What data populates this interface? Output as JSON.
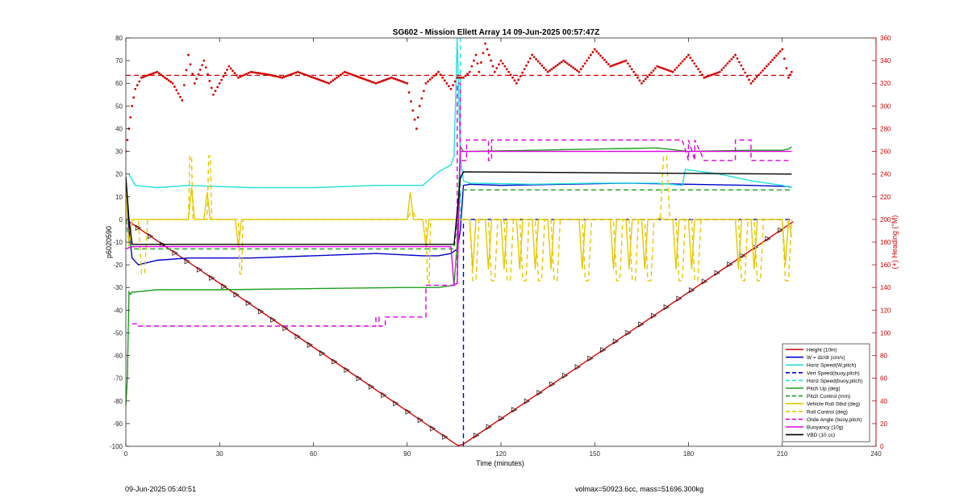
{
  "footer": {
    "timestamp": "09-Jun-2025 05:40:51",
    "volmax_mass": "volmax=50923.6cc, mass=51696.300kg"
  },
  "chart_data": {
    "type": "line",
    "title": "SG602 - Mission Ellett Array 14 09-Jun-2025 00:57:47Z",
    "xlabel": "Time (minutes)",
    "ylabel": "p6020590",
    "y2label": "(+) Heading (°M)",
    "xlim": [
      0,
      240
    ],
    "ylim": [
      -100,
      80
    ],
    "y2lim": [
      0,
      360
    ],
    "xticks": [
      0,
      30,
      60,
      90,
      120,
      150,
      180,
      210,
      240
    ],
    "yticks": [
      -100,
      -90,
      -80,
      -70,
      -60,
      -50,
      -40,
      -30,
      -20,
      -10,
      0,
      10,
      20,
      30,
      40,
      50,
      60,
      70,
      80
    ],
    "y2ticks": [
      0,
      20,
      40,
      60,
      80,
      100,
      120,
      140,
      160,
      180,
      200,
      220,
      240,
      260,
      280,
      300,
      320,
      340,
      360
    ],
    "grid": false,
    "legend_position": "bottom-right",
    "series": [
      {
        "name": "Height (10m)",
        "color": "#d40000",
        "style": "solid",
        "width": 1.4,
        "x": [
          0,
          106,
          107,
          108,
          213.5
        ],
        "y": [
          0,
          -99.5,
          -99.5,
          -99,
          -1
        ]
      },
      {
        "name": "W = dz/dt (cm/s)",
        "color": "#0000cc",
        "style": "solid",
        "width": 1.4,
        "x": [
          0,
          0.5,
          1,
          2,
          4,
          10,
          20,
          40,
          60,
          80,
          95,
          100,
          104,
          106,
          107,
          108,
          110,
          120,
          140,
          160,
          180,
          200,
          212,
          213
        ],
        "y": [
          15,
          10,
          -5,
          -17,
          -20,
          -18,
          -17,
          -17,
          -16,
          -15,
          -16,
          -16,
          -15,
          -13,
          -5,
          15,
          15.5,
          15,
          15.5,
          16,
          15.5,
          15,
          14.5,
          14
        ]
      },
      {
        "name": "Horiz Speed(W,pitch)",
        "color": "#22e0e0",
        "style": "solid",
        "width": 1.4,
        "x": [
          1,
          3,
          10,
          20,
          40,
          60,
          80,
          95,
          100,
          104,
          105,
          106,
          107,
          108,
          110,
          130,
          150,
          170,
          178,
          179,
          190,
          200,
          210,
          213
        ],
        "y": [
          20,
          15,
          14,
          15,
          14,
          14,
          15,
          15,
          21,
          24,
          28,
          80,
          28,
          17,
          16,
          15.5,
          16,
          16,
          15,
          22,
          20,
          17,
          15,
          14
        ]
      },
      {
        "name": "Vert Speed(buoy,pitch)",
        "color": "#0000cc",
        "style": "dashed",
        "width": 1.4,
        "x": [
          108,
          108,
          109,
          213
        ],
        "y": [
          -100,
          0,
          0,
          0
        ]
      },
      {
        "name": "Horiz Speed(buoy,pitch)",
        "color": "#22e0e0",
        "style": "dashed",
        "width": 1.4,
        "x": [
          107,
          107
        ],
        "y": [
          0,
          80
        ]
      },
      {
        "name": "Pitch Up (deg)",
        "color": "#1a9e1a",
        "style": "solid",
        "width": 1.4,
        "x": [
          0,
          0.5,
          1,
          1.5,
          2,
          3,
          10,
          30,
          60,
          90,
          95,
          100,
          105,
          106,
          107,
          108,
          109,
          110,
          130,
          150,
          170,
          180,
          200,
          210,
          212,
          213
        ],
        "y": [
          -82,
          -70,
          -32,
          -33,
          -32,
          -32,
          -31,
          -31,
          -30.5,
          -30,
          -30,
          -30,
          -29,
          -10,
          32,
          30,
          30,
          30,
          30.5,
          31,
          31.5,
          30,
          30.5,
          30.5,
          31,
          32
        ]
      },
      {
        "name": "Pitch Control (mm)",
        "color": "#1a9e1a",
        "style": "dashed",
        "width": 1.4,
        "x": [
          0,
          1,
          2,
          105,
          107,
          108,
          213
        ],
        "y": [
          0,
          -10,
          -13,
          -13,
          11,
          13,
          13
        ]
      },
      {
        "name": "Vehicle Roll Stbd (deg)",
        "color": "#e6c800",
        "style": "solid",
        "width": 1.4,
        "x": [
          0,
          0.5,
          1,
          2,
          20,
          21,
          22,
          25,
          26,
          27,
          35,
          36,
          37,
          90,
          91,
          92,
          95,
          96,
          97,
          105,
          108,
          110,
          111,
          112,
          113,
          115,
          116,
          117,
          120,
          121,
          122,
          125,
          126,
          127,
          130,
          131,
          132,
          135,
          136,
          137,
          145,
          146,
          147,
          155,
          156,
          157,
          160,
          161,
          162,
          165,
          166,
          167,
          170,
          171,
          172,
          175,
          176,
          177,
          180,
          181,
          182,
          195,
          196,
          197,
          200,
          201,
          202,
          210,
          211,
          212,
          213
        ],
        "y": [
          15,
          0,
          -12,
          0,
          0,
          14,
          0,
          0,
          12,
          0,
          0,
          -12,
          0,
          0,
          12,
          0,
          0,
          -12,
          0,
          0,
          0,
          0,
          -22,
          0,
          0,
          0,
          -22,
          0,
          0,
          -22,
          0,
          0,
          -22,
          0,
          0,
          -22,
          0,
          0,
          -22,
          0,
          0,
          -22,
          0,
          0,
          -22,
          0,
          0,
          -22,
          0,
          0,
          -22,
          0,
          0,
          1,
          0,
          0,
          -22,
          0,
          0,
          -22,
          0,
          0,
          -22,
          0,
          0,
          -22,
          0,
          0,
          -20,
          0,
          -8
        ]
      },
      {
        "name": "Roll Control (deg)",
        "color": "#e6c800",
        "style": "dashed",
        "width": 1.4,
        "x": [
          2,
          4,
          5,
          6,
          7,
          8,
          20,
          20.5,
          21,
          21.5,
          26,
          26.5,
          27,
          27.5,
          36,
          36.5,
          37,
          37.5,
          90,
          91,
          92,
          93,
          96,
          96.5,
          97,
          97.5,
          110,
          111,
          112,
          113,
          116,
          117,
          118,
          119,
          121,
          122,
          123,
          124,
          126,
          127,
          128,
          129,
          131,
          132,
          133,
          134,
          136,
          137,
          138,
          139,
          146,
          147,
          148,
          149,
          156,
          157,
          158,
          159,
          161,
          162,
          163,
          164,
          166,
          167,
          168,
          169,
          171,
          172,
          173,
          174,
          176,
          177,
          178,
          179,
          181,
          182,
          183,
          184,
          196,
          197,
          198,
          199,
          201,
          202,
          203,
          204,
          210,
          211,
          212,
          213
        ],
        "y": [
          0,
          0,
          -24,
          -24,
          0,
          0,
          0,
          28,
          28,
          0,
          0,
          28,
          28,
          0,
          0,
          -24,
          -24,
          0,
          0,
          3,
          3,
          0,
          0,
          -28,
          -28,
          0,
          0,
          -27,
          -27,
          0,
          0,
          -27,
          -27,
          0,
          0,
          -27,
          -27,
          0,
          0,
          -27,
          -27,
          0,
          0,
          -27,
          -27,
          0,
          0,
          -27,
          -27,
          0,
          0,
          -27,
          -27,
          0,
          0,
          -27,
          -27,
          0,
          0,
          -27,
          -27,
          0,
          0,
          -27,
          -27,
          0,
          0,
          28,
          28,
          0,
          0,
          -27,
          -27,
          0,
          0,
          -27,
          -27,
          0,
          0,
          -27,
          -27,
          0,
          0,
          -27,
          -27,
          0,
          0,
          -27,
          -27,
          0
        ]
      },
      {
        "name": "Glide Angle (buoy,pitch)",
        "color": "#e000e0",
        "style": "dashed",
        "width": 1.4,
        "x": [
          2,
          4,
          4,
          80,
          80,
          81,
          81,
          83,
          83,
          96,
          96,
          106,
          106,
          107,
          107,
          109,
          109,
          116,
          116,
          117,
          117,
          178,
          178,
          180,
          180,
          182,
          182,
          185,
          185,
          190,
          190,
          195,
          195,
          200,
          200,
          213
        ],
        "y": [
          -46,
          -46,
          -47,
          -47,
          -43,
          -43,
          -47,
          -47,
          -43,
          -43,
          -29,
          -29,
          60,
          60,
          26,
          26,
          35,
          35,
          26,
          26,
          35,
          35,
          35,
          26,
          35,
          26,
          35,
          26,
          26,
          26,
          26,
          26,
          35,
          35,
          26,
          26
        ]
      },
      {
        "name": "Buoyancy (10g)",
        "color": "#e000e0",
        "style": "solid",
        "width": 1.4,
        "x": [
          0,
          2,
          104,
          105,
          106,
          107,
          108,
          213
        ],
        "y": [
          -13,
          -12,
          -12,
          -29,
          -28,
          30,
          30,
          30
        ]
      },
      {
        "name": "VBD (10 cc)",
        "color": "#000000",
        "style": "solid",
        "width": 1.4,
        "x": [
          0,
          1,
          2,
          105,
          107,
          108,
          213
        ],
        "y": [
          19,
          0,
          -11,
          -11,
          18,
          21,
          20
        ]
      },
      {
        "name": "",
        "axis": "y2",
        "color": "#d40000",
        "style": "dashed",
        "width": 1.3,
        "x": [
          0,
          213
        ],
        "y": [
          327,
          327
        ]
      },
      {
        "name": "",
        "axis": "y2",
        "color": "#d40000",
        "style": "markers",
        "width": 1,
        "x": [
          0,
          1,
          2,
          3,
          5,
          10,
          15,
          18,
          20,
          22,
          25,
          28,
          30,
          33,
          36,
          40,
          45,
          50,
          55,
          60,
          65,
          70,
          75,
          80,
          85,
          90,
          93,
          94,
          96,
          100,
          104,
          106,
          108,
          110,
          112,
          113,
          115,
          118,
          120,
          125,
          130,
          135,
          140,
          145,
          150,
          155,
          160,
          165,
          170,
          175,
          180,
          185,
          190,
          195,
          200,
          205,
          210,
          212,
          213
        ],
        "y": [
          260,
          280,
          300,
          315,
          325,
          330,
          320,
          305,
          345,
          320,
          340,
          310,
          320,
          335,
          325,
          330,
          328,
          325,
          330,
          325,
          320,
          330,
          325,
          320,
          325,
          320,
          280,
          300,
          320,
          330,
          315,
          325,
          325,
          330,
          345,
          330,
          355,
          330,
          340,
          320,
          345,
          330,
          340,
          330,
          350,
          335,
          340,
          320,
          335,
          330,
          345,
          325,
          330,
          345,
          320,
          335,
          350,
          325,
          330
        ]
      }
    ]
  }
}
